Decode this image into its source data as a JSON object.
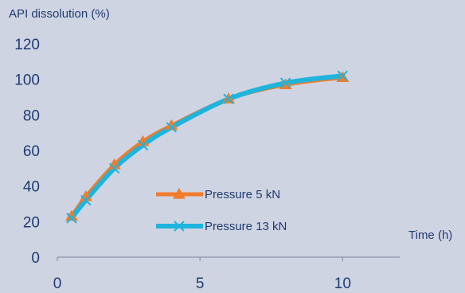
{
  "chart_data": {
    "type": "line",
    "title": "",
    "ylabel": "API dissolution (%)",
    "xlabel": "Time (h)",
    "xlim": [
      0,
      12
    ],
    "ylim": [
      0,
      120
    ],
    "xticks": [
      0,
      5,
      10
    ],
    "yticks": [
      0,
      20,
      40,
      60,
      80,
      100,
      120
    ],
    "grid": false,
    "legend_position": "center-right inside plot",
    "series": [
      {
        "name": "Pressure 5 kN",
        "color": "#f07c2c",
        "marker": "triangle",
        "x": [
          0.5,
          1,
          2,
          3,
          4,
          6,
          8,
          10
        ],
        "y": [
          23,
          34,
          52,
          65,
          74,
          89,
          97,
          101
        ]
      },
      {
        "name": "Pressure 13 kN",
        "color": "#1fb4dc",
        "marker": "x",
        "x": [
          0.5,
          1,
          2,
          3,
          4,
          6,
          8,
          10
        ],
        "y": [
          22,
          32,
          50,
          63,
          73,
          89,
          98,
          102
        ]
      }
    ]
  }
}
